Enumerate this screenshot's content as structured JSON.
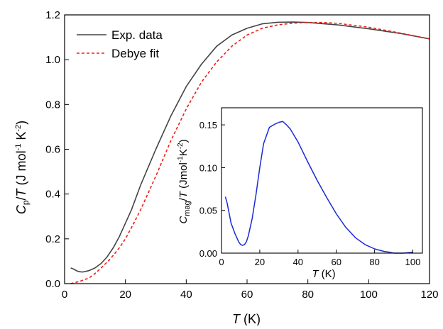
{
  "chart_data": [
    {
      "type": "line",
      "xlabel": "T (K)",
      "ylabel": "Cp/T (J mol-1 K-2)",
      "xlim": [
        0,
        120
      ],
      "ylim": [
        0,
        1.2
      ],
      "xticks": [
        "0",
        "20",
        "40",
        "60",
        "80",
        "100",
        "120"
      ],
      "yticks": [
        "0.0",
        "0.2",
        "0.4",
        "0.6",
        "0.8",
        "1.0",
        "1.2"
      ],
      "legend_position": "top-left",
      "series": [
        {
          "name": "Exp. data",
          "color": "#444444",
          "style": "solid",
          "x": [
            2,
            3,
            4,
            5,
            6,
            8,
            10,
            12,
            14,
            16,
            18,
            20,
            22,
            25,
            30,
            35,
            40,
            45,
            50,
            55,
            60,
            65,
            70,
            75,
            80,
            90,
            100,
            110,
            120
          ],
          "y": [
            0.07,
            0.065,
            0.057,
            0.053,
            0.052,
            0.058,
            0.07,
            0.09,
            0.12,
            0.16,
            0.21,
            0.27,
            0.33,
            0.44,
            0.6,
            0.75,
            0.88,
            0.98,
            1.06,
            1.11,
            1.14,
            1.16,
            1.167,
            1.168,
            1.166,
            1.155,
            1.138,
            1.118,
            1.093
          ]
        },
        {
          "name": "Debye fit",
          "color": "#e8201a",
          "style": "dashed",
          "x": [
            2,
            5,
            8,
            10,
            12,
            15,
            18,
            20,
            22,
            25,
            30,
            35,
            40,
            45,
            50,
            55,
            60,
            65,
            70,
            75,
            80,
            85,
            90,
            100,
            110,
            120
          ],
          "y": [
            0.0,
            0.01,
            0.025,
            0.045,
            0.07,
            0.11,
            0.16,
            0.2,
            0.25,
            0.33,
            0.48,
            0.64,
            0.78,
            0.9,
            0.99,
            1.06,
            1.11,
            1.14,
            1.155,
            1.163,
            1.166,
            1.166,
            1.162,
            1.145,
            1.12,
            1.093
          ]
        }
      ]
    },
    {
      "type": "line",
      "xlabel": "T (K)",
      "ylabel": "Cmag/T (Jmol-1 K-2)",
      "xlim": [
        0,
        105
      ],
      "ylim": [
        0,
        0.17
      ],
      "xticks": [
        "0",
        "20",
        "40",
        "60",
        "80",
        "100"
      ],
      "yticks": [
        "0.00",
        "0.05",
        "0.10",
        "0.15"
      ],
      "series": [
        {
          "color": "#1a2ad6",
          "x": [
            2,
            3,
            5,
            7,
            9,
            10,
            11,
            12,
            13,
            14,
            16,
            18,
            20,
            22,
            25,
            28,
            30,
            32,
            34,
            36,
            40,
            45,
            50,
            55,
            60,
            65,
            70,
            75,
            80,
            85,
            88,
            90,
            95,
            100
          ],
          "y": [
            0.066,
            0.058,
            0.035,
            0.023,
            0.013,
            0.01,
            0.009,
            0.01,
            0.013,
            0.02,
            0.04,
            0.068,
            0.1,
            0.128,
            0.147,
            0.151,
            0.153,
            0.154,
            0.15,
            0.145,
            0.13,
            0.107,
            0.085,
            0.065,
            0.046,
            0.03,
            0.018,
            0.01,
            0.005,
            0.002,
            0.001,
            0.0,
            0.0,
            0.001
          ]
        }
      ]
    }
  ],
  "legend": {
    "exp_label": "Exp. data",
    "fit_label": "Debye fit"
  },
  "axes": {
    "main_x_symbol": "T",
    "main_x_unit": " (K)",
    "main_y_sym_c": "C",
    "main_y_sub": "p",
    "main_y_slash": "/",
    "main_y_sym_t": "T",
    "main_y_unit_a": " (J mol",
    "main_y_exp1": "-1",
    "main_y_unit_b": " K",
    "main_y_exp2": "-2",
    "main_y_unit_c": ")",
    "inset_x_symbol": "T",
    "inset_x_unit": " (K)",
    "inset_y_sym_c": "C",
    "inset_y_sub": "mag",
    "inset_y_slash": "/",
    "inset_y_sym_t": "T",
    "inset_y_unit_a": " (Jmol",
    "inset_y_exp1": "-1",
    "inset_y_unit_b": "K",
    "inset_y_exp2": "-2",
    "inset_y_unit_c": ")"
  }
}
